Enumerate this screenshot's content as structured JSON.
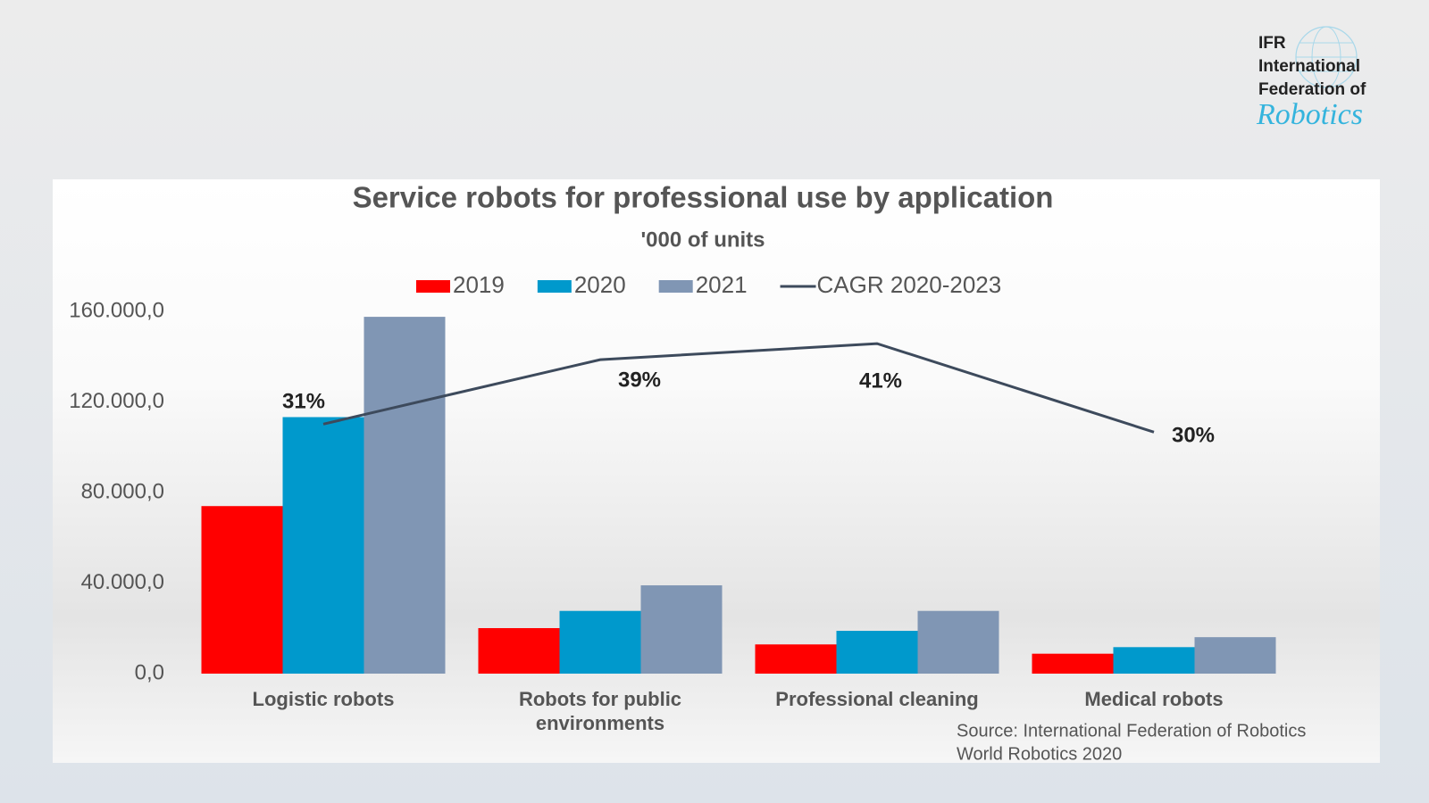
{
  "logo": {
    "lines": [
      "IFR",
      "International",
      "Federation of"
    ],
    "script": "Robotics"
  },
  "chart_data": {
    "type": "bar",
    "title": "Service robots for professional use by application",
    "subtitle": "'000 of units",
    "categories": [
      "Logistic robots",
      "Robots for public environments",
      "Professional cleaning",
      "Medical robots"
    ],
    "series": [
      {
        "name": "2019",
        "color": "#ff0000",
        "values": [
          74000,
          20100,
          12900,
          8800
        ]
      },
      {
        "name": "2020",
        "color": "#0099cc",
        "values": [
          113300,
          27700,
          18900,
          11700
        ]
      },
      {
        "name": "2021",
        "color": "#8096b4",
        "values": [
          157600,
          39000,
          27700,
          16100
        ]
      },
      {
        "name": "CAGR 2020-2023",
        "type": "line",
        "axis": "y2",
        "color": "#3d4a5c",
        "values": [
          31,
          39,
          41,
          30
        ],
        "value_labels": [
          "31%",
          "39%",
          "41%",
          "30%"
        ]
      }
    ],
    "ylim": [
      0,
      160000
    ],
    "yticks": [
      {
        "value": 0,
        "label": "0,0"
      },
      {
        "value": 40000,
        "label": "40.000,0"
      },
      {
        "value": 80000,
        "label": "80.000,0"
      },
      {
        "value": 120000,
        "label": "120.000,0"
      },
      {
        "value": 160000,
        "label": "160.000,0"
      }
    ],
    "y2lim": [
      0,
      45
    ],
    "grid": false,
    "legend": "top",
    "source": [
      "Source: International Federation of Robotics",
      "World Robotics 2020"
    ]
  }
}
